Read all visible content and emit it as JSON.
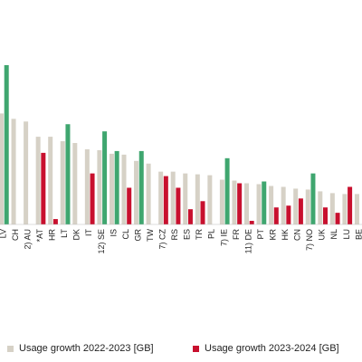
{
  "chart_data": {
    "type": "bar",
    "categories": [
      "LV",
      "CH",
      "2) AU",
      "*AT",
      "HR",
      "LT",
      "DK",
      "IT",
      "12) SE",
      "IS",
      "CL",
      "GR",
      "TW",
      "7) CZ",
      "RS",
      "ES",
      "TR",
      "PL",
      "7) IE",
      "FR",
      "11) DE",
      "PT",
      "KR",
      "HK",
      "CN",
      "7) NO",
      "UK",
      "NL",
      "LU",
      "BE"
    ],
    "series": [
      {
        "name": "Usage growth 2022-2023 [GB]",
        "color": "#d6d1c6",
        "values": [
          124,
          118,
          115,
          98,
          98,
          93,
          91,
          84,
          83,
          79,
          78,
          71,
          68,
          59,
          59,
          57,
          56,
          55,
          50,
          49,
          46,
          45,
          43,
          42,
          40,
          39,
          37,
          35,
          34,
          34
        ]
      },
      {
        "name": "Usage growth 2023-2024 [GB]",
        "color": "#c8102e",
        "values": [
          null,
          null,
          null,
          80,
          6,
          null,
          null,
          57,
          null,
          null,
          41,
          null,
          null,
          54,
          41,
          17,
          26,
          null,
          null,
          46,
          4,
          null,
          19,
          21,
          29,
          null,
          19,
          13,
          42,
          null
        ]
      },
      {
        "name": "",
        "color": "#3fa66f",
        "values": [
          178,
          null,
          null,
          null,
          null,
          112,
          null,
          null,
          104,
          82,
          null,
          82,
          null,
          null,
          null,
          null,
          null,
          null,
          74,
          null,
          null,
          48,
          null,
          null,
          null,
          57,
          null,
          null,
          null,
          null
        ]
      }
    ],
    "ylim": [
      0,
      180
    ],
    "legend_position": "bottom",
    "grid": false
  },
  "legend": [
    {
      "label": "Usage growth 2022-2023 [GB]",
      "color": "#d6d1c6"
    },
    {
      "label": "Usage growth 2023-2024 [GB]",
      "color": "#c8102e"
    }
  ]
}
